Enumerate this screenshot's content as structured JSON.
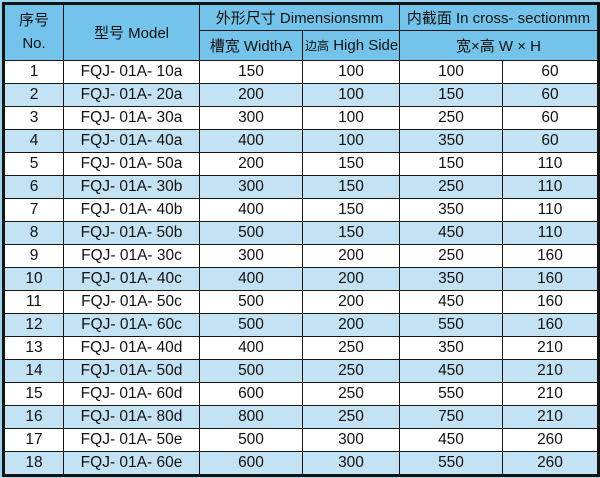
{
  "colors": {
    "header_bg": "#73c3ea",
    "stripe_bg": "#c3e2f4",
    "page_bg": "#9fd4ee",
    "border": "#141414"
  },
  "table": {
    "header": {
      "no_cn": "序号",
      "no_en": "No.",
      "model": "型号 Model",
      "dimensions": "外形尺寸 Dimensionsmm",
      "cross_section": "内截面 In cross- sectionmm",
      "width_a": "槽宽 WidthA",
      "side_b_cn": "边高",
      "side_b_en": "High SideB",
      "wxh": "宽×高 W × H"
    },
    "rows": [
      {
        "no": "1",
        "model": "FQJ- 01A- 10a",
        "width_a": "150",
        "side_b": "100",
        "w": "100",
        "h": "60"
      },
      {
        "no": "2",
        "model": "FQJ- 01A- 20a",
        "width_a": "200",
        "side_b": "100",
        "w": "150",
        "h": "60"
      },
      {
        "no": "3",
        "model": "FQJ- 01A- 30a",
        "width_a": "300",
        "side_b": "100",
        "w": "250",
        "h": "60"
      },
      {
        "no": "4",
        "model": "FQJ- 01A- 40a",
        "width_a": "400",
        "side_b": "100",
        "w": "350",
        "h": "60"
      },
      {
        "no": "5",
        "model": "FQJ- 01A- 50a",
        "width_a": "200",
        "side_b": "150",
        "w": "150",
        "h": "110"
      },
      {
        "no": "6",
        "model": "FQJ- 01A- 30b",
        "width_a": "300",
        "side_b": "150",
        "w": "250",
        "h": "110"
      },
      {
        "no": "7",
        "model": "FQJ- 01A- 40b",
        "width_a": "400",
        "side_b": "150",
        "w": "350",
        "h": "110"
      },
      {
        "no": "8",
        "model": "FQJ- 01A- 50b",
        "width_a": "500",
        "side_b": "150",
        "w": "450",
        "h": "110"
      },
      {
        "no": "9",
        "model": "FQJ- 01A- 30c",
        "width_a": "300",
        "side_b": "200",
        "w": "250",
        "h": "160"
      },
      {
        "no": "10",
        "model": "FQJ- 01A- 40c",
        "width_a": "400",
        "side_b": "200",
        "w": "350",
        "h": "160"
      },
      {
        "no": "11",
        "model": "FQJ- 01A- 50c",
        "width_a": "500",
        "side_b": "200",
        "w": "450",
        "h": "160"
      },
      {
        "no": "12",
        "model": "FQJ- 01A- 60c",
        "width_a": "500",
        "side_b": "200",
        "w": "550",
        "h": "160"
      },
      {
        "no": "13",
        "model": "FQJ- 01A- 40d",
        "width_a": "400",
        "side_b": "250",
        "w": "350",
        "h": "210"
      },
      {
        "no": "14",
        "model": "FQJ- 01A- 50d",
        "width_a": "500",
        "side_b": "250",
        "w": "450",
        "h": "210"
      },
      {
        "no": "15",
        "model": "FQJ- 01A- 60d",
        "width_a": "600",
        "side_b": "250",
        "w": "550",
        "h": "210"
      },
      {
        "no": "16",
        "model": "FQJ- 01A- 80d",
        "width_a": "800",
        "side_b": "250",
        "w": "750",
        "h": "210"
      },
      {
        "no": "17",
        "model": "FQJ- 01A- 50e",
        "width_a": "500",
        "side_b": "300",
        "w": "450",
        "h": "260"
      },
      {
        "no": "18",
        "model": "FQJ- 01A- 60e",
        "width_a": "600",
        "side_b": "300",
        "w": "550",
        "h": "260"
      }
    ]
  }
}
